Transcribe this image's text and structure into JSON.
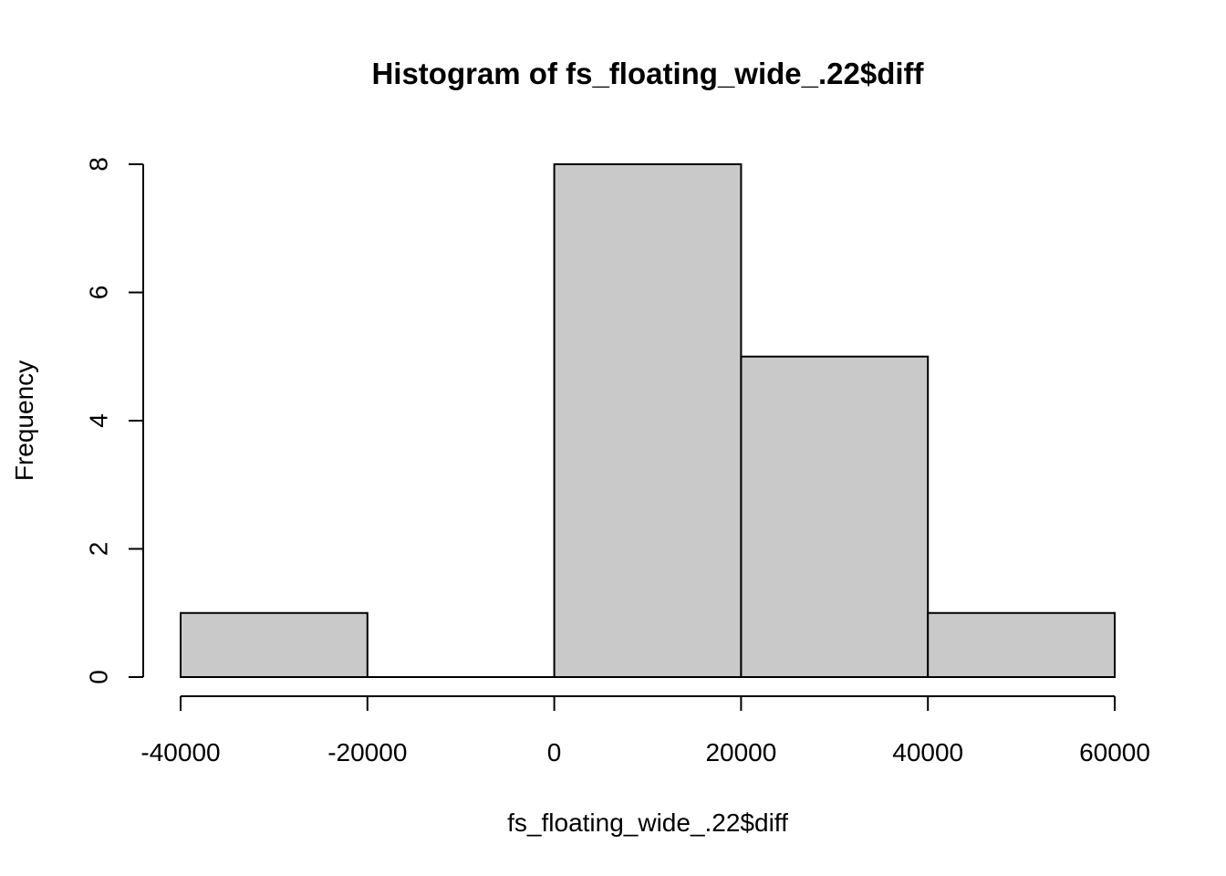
{
  "chart_data": {
    "type": "bar",
    "title": "Histogram of fs_floating_wide_.22$diff",
    "xlabel": "fs_floating_wide_.22$diff",
    "ylabel": "Frequency",
    "bins": [
      {
        "start": -40000,
        "end": -20000,
        "count": 1
      },
      {
        "start": -20000,
        "end": 0,
        "count": 0
      },
      {
        "start": 0,
        "end": 20000,
        "count": 8
      },
      {
        "start": 20000,
        "end": 40000,
        "count": 5
      },
      {
        "start": 40000,
        "end": 60000,
        "count": 1
      }
    ],
    "xticks": [
      -40000,
      -20000,
      0,
      20000,
      40000,
      60000
    ],
    "xtick_labels": [
      "-40000",
      "-20000",
      "0",
      "20000",
      "40000",
      "60000"
    ],
    "yticks": [
      0,
      2,
      4,
      6,
      8
    ],
    "ytick_labels": [
      "0",
      "2",
      "4",
      "6",
      "8"
    ],
    "xlim": [
      -40000,
      60000
    ],
    "ylim": [
      0,
      8
    ],
    "grid": false,
    "bar_color": "#c9c9c9",
    "edge_color": "#000000"
  }
}
